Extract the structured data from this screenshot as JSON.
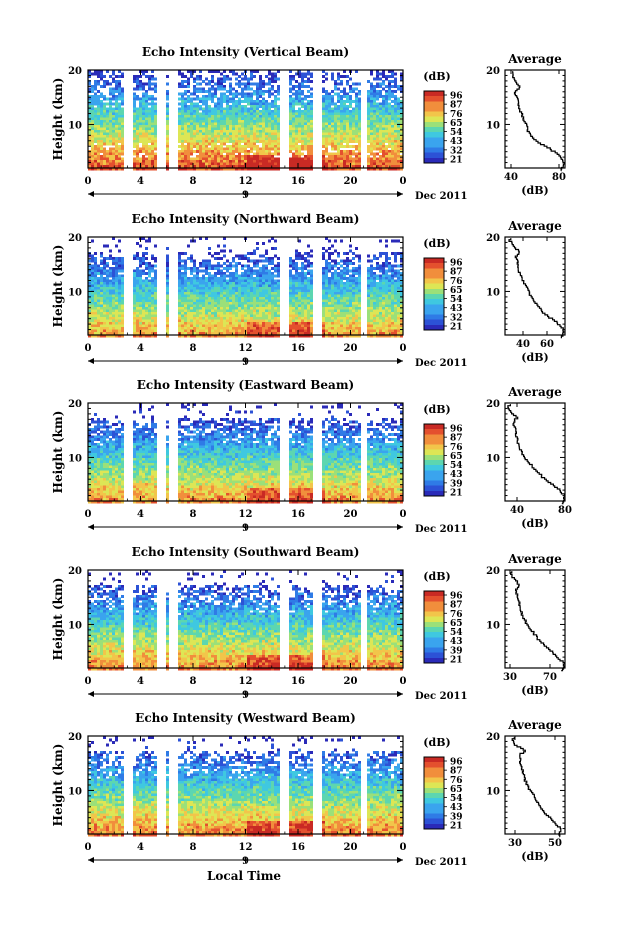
{
  "figure": {
    "xlabel": "Local Time"
  },
  "chart_data": [
    {
      "type": "heatmap",
      "title": "Echo Intensity (Vertical Beam)",
      "ylabel": "Height (km)",
      "ylim": [
        2,
        20
      ],
      "x_ticks": [
        "0",
        "4",
        "8",
        "12",
        "16",
        "20",
        "0"
      ],
      "y_ticks": [
        "10",
        "20"
      ],
      "day_tick": "9",
      "date_label": "Dec 2011",
      "colorbar": {
        "unit": "(dB)",
        "ticks": [
          "96",
          "87",
          "76",
          "65",
          "54",
          "43",
          "32",
          "21"
        ]
      },
      "profile": {
        "title": "Average",
        "xlabel": "(dB)",
        "xticks": [
          "40",
          "80"
        ],
        "xlim": [
          35,
          85
        ],
        "values": [
          [
            1.5,
            82
          ],
          [
            3,
            84
          ],
          [
            4.5,
            80
          ],
          [
            6,
            70
          ],
          [
            7,
            62
          ],
          [
            8.5,
            55
          ],
          [
            10,
            53
          ],
          [
            11.5,
            50
          ],
          [
            13,
            47
          ],
          [
            14.5,
            46
          ],
          [
            16,
            43
          ],
          [
            17,
            48
          ],
          [
            18,
            44
          ],
          [
            19,
            41
          ],
          [
            20,
            42
          ]
        ]
      }
    },
    {
      "type": "heatmap",
      "title": "Echo Intensity (Northward Beam)",
      "ylabel": "Height (km)",
      "ylim": [
        2,
        20
      ],
      "x_ticks": [
        "0",
        "4",
        "8",
        "12",
        "16",
        "20",
        "0"
      ],
      "y_ticks": [
        "10",
        "20"
      ],
      "day_tick": "9",
      "date_label": "Dec 2011",
      "colorbar": {
        "unit": "(dB)",
        "ticks": [
          "96",
          "87",
          "76",
          "65",
          "54",
          "43",
          "32",
          "21"
        ]
      },
      "profile": {
        "title": "Average",
        "xlabel": "(dB)",
        "xticks": [
          "40",
          "60"
        ],
        "xlim": [
          25,
          75
        ],
        "values": [
          [
            1.5,
            72
          ],
          [
            3,
            74
          ],
          [
            4.5,
            68
          ],
          [
            6,
            58
          ],
          [
            7.5,
            52
          ],
          [
            9,
            47
          ],
          [
            10.5,
            44
          ],
          [
            12,
            40
          ],
          [
            13.5,
            37
          ],
          [
            15,
            36
          ],
          [
            16.5,
            34
          ],
          [
            17.5,
            37
          ],
          [
            18.5,
            32
          ],
          [
            19.5,
            29
          ],
          [
            20,
            30
          ]
        ]
      }
    },
    {
      "type": "heatmap",
      "title": "Echo Intensity (Eastward Beam)",
      "ylabel": "Height (km)",
      "ylim": [
        2,
        20
      ],
      "x_ticks": [
        "0",
        "4",
        "8",
        "12",
        "16",
        "20",
        "0"
      ],
      "y_ticks": [
        "10",
        "20"
      ],
      "day_tick": "9",
      "date_label": "Dec 2011",
      "colorbar": {
        "unit": "(dB)",
        "ticks": [
          "96",
          "87",
          "76",
          "65",
          "54",
          "43",
          "39",
          "21"
        ]
      },
      "profile": {
        "title": "Average",
        "xlabel": "(dB)",
        "xticks": [
          "40",
          "80"
        ],
        "xlim": [
          30,
          80
        ],
        "values": [
          [
            1.5,
            78
          ],
          [
            3,
            80
          ],
          [
            4.5,
            74
          ],
          [
            6,
            64
          ],
          [
            7.5,
            57
          ],
          [
            9,
            51
          ],
          [
            10.5,
            45
          ],
          [
            12,
            42
          ],
          [
            13.5,
            40
          ],
          [
            15,
            39
          ],
          [
            16.5,
            37
          ],
          [
            17.5,
            40
          ],
          [
            18.5,
            35
          ],
          [
            19.5,
            33
          ],
          [
            20,
            34
          ]
        ]
      }
    },
    {
      "type": "heatmap",
      "title": "Echo Intensity (Southward Beam)",
      "ylabel": "Height (km)",
      "ylim": [
        2,
        20
      ],
      "x_ticks": [
        "0",
        "4",
        "8",
        "12",
        "16",
        "20",
        "0"
      ],
      "y_ticks": [
        "10",
        "20"
      ],
      "day_tick": "9",
      "date_label": "Dec 2011",
      "colorbar": {
        "unit": "(dB)",
        "ticks": [
          "96",
          "87",
          "76",
          "65",
          "54",
          "43",
          "39",
          "21"
        ]
      },
      "profile": {
        "title": "Average",
        "xlabel": "(dB)",
        "xticks": [
          "30",
          "70"
        ],
        "xlim": [
          25,
          85
        ],
        "values": [
          [
            1.5,
            82
          ],
          [
            3,
            84
          ],
          [
            4.5,
            76
          ],
          [
            6,
            66
          ],
          [
            7.5,
            58
          ],
          [
            9,
            52
          ],
          [
            10.5,
            46
          ],
          [
            12,
            42
          ],
          [
            13.5,
            40
          ],
          [
            15,
            38
          ],
          [
            16.5,
            36
          ],
          [
            17.5,
            39
          ],
          [
            18.5,
            34
          ],
          [
            19.5,
            31
          ],
          [
            20,
            32
          ]
        ]
      }
    },
    {
      "type": "heatmap",
      "title": "Echo Intensity (Westward Beam)",
      "ylabel": "Height (km)",
      "ylim": [
        2,
        20
      ],
      "x_ticks": [
        "0",
        "4",
        "8",
        "12",
        "16",
        "20",
        "0"
      ],
      "y_ticks": [
        "10",
        "20"
      ],
      "day_tick": "9",
      "date_label": "Dec 2011",
      "colorbar": {
        "unit": "(dB)",
        "ticks": [
          "96",
          "87",
          "76",
          "65",
          "54",
          "43",
          "39",
          "21"
        ]
      },
      "profile": {
        "title": "Average",
        "xlabel": "(dB)",
        "xticks": [
          "30",
          "50"
        ],
        "xlim": [
          25,
          55
        ],
        "values": [
          [
            1.5,
            52
          ],
          [
            3,
            53
          ],
          [
            4.5,
            49
          ],
          [
            6,
            45
          ],
          [
            7.5,
            42
          ],
          [
            9,
            40
          ],
          [
            10.5,
            37
          ],
          [
            12,
            35
          ],
          [
            13.5,
            34
          ],
          [
            15,
            33
          ],
          [
            16.5,
            32
          ],
          [
            17.5,
            35
          ],
          [
            18.5,
            30
          ],
          [
            19.5,
            29
          ],
          [
            20,
            30
          ]
        ]
      }
    }
  ]
}
